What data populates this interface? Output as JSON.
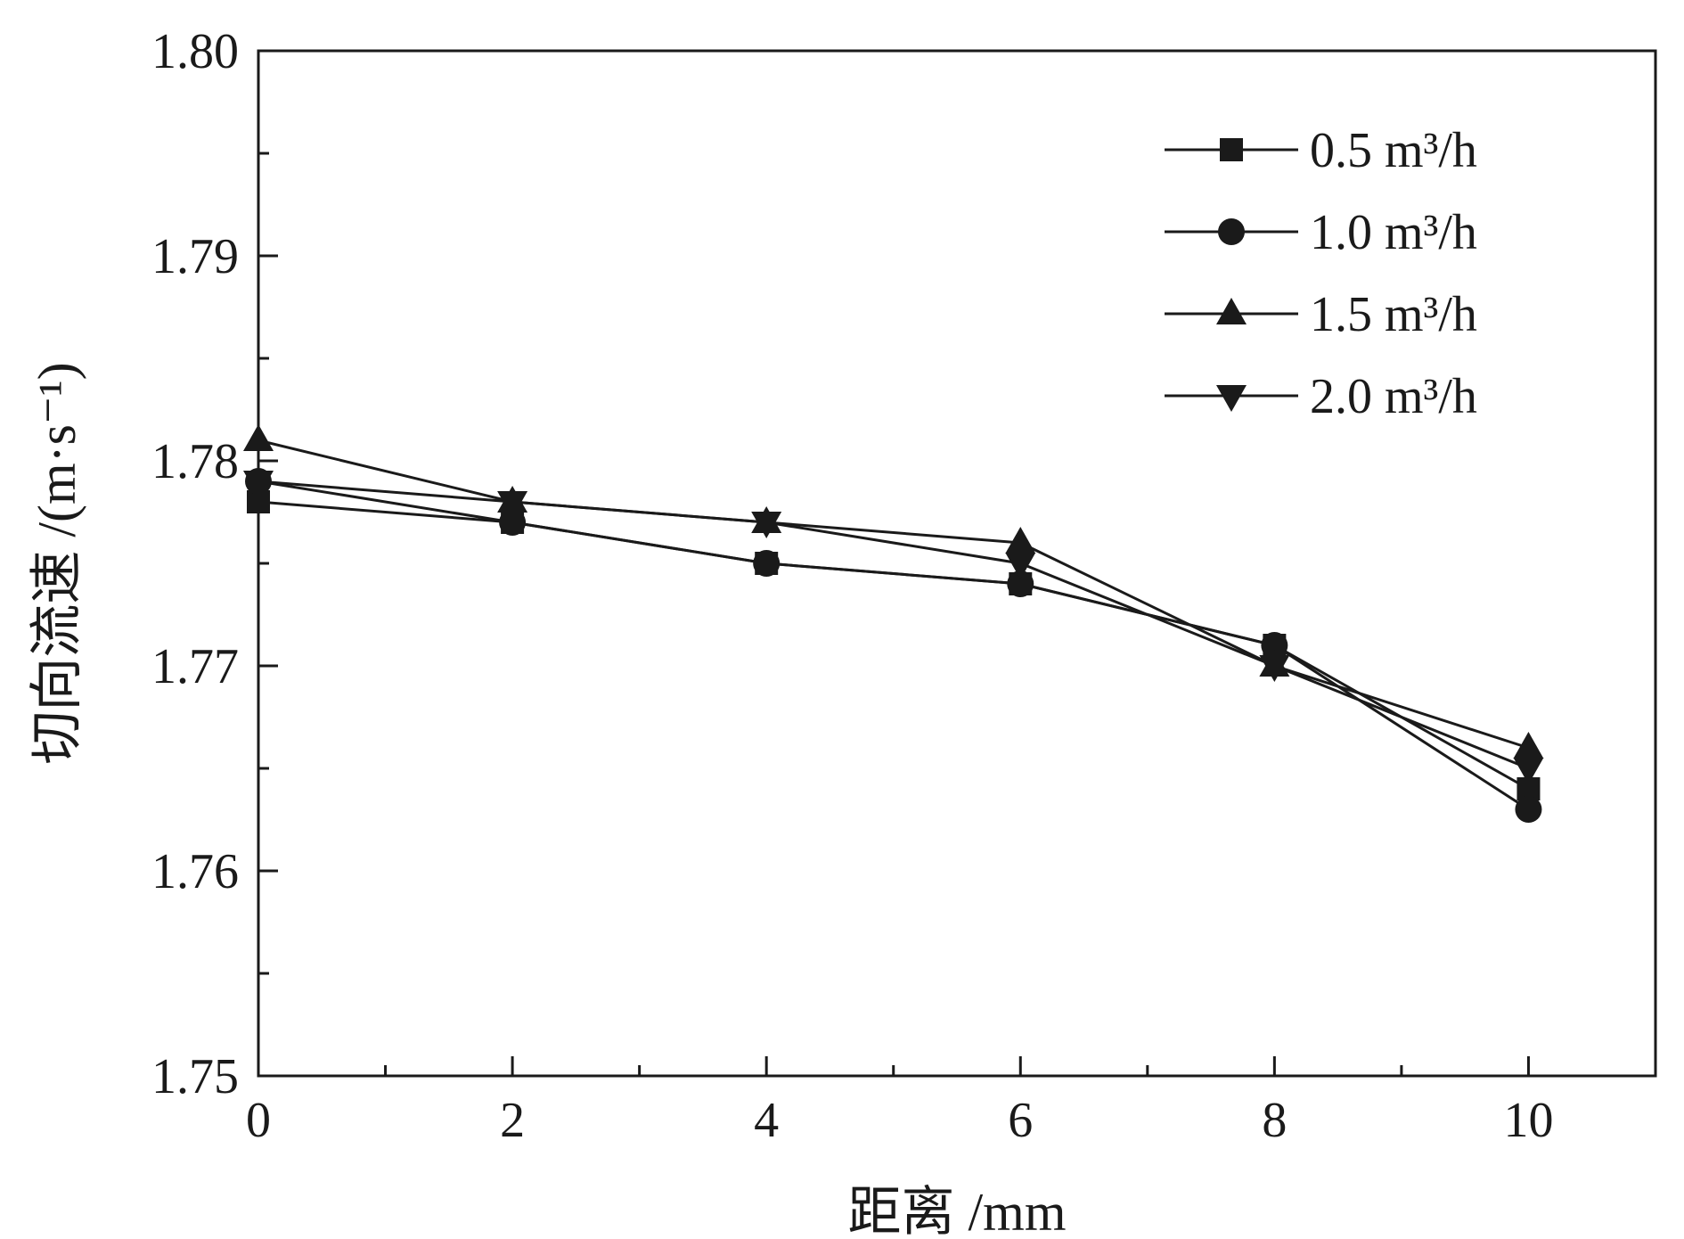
{
  "chart_data": {
    "type": "line",
    "xlabel": "距离 /mm",
    "ylabel": "切向流速 /(m·s⁻¹)",
    "xlim": [
      0,
      11
    ],
    "ylim": [
      1.75,
      1.8
    ],
    "x_ticks": [
      0,
      2,
      4,
      6,
      8,
      10
    ],
    "x_tick_labels": [
      "0",
      "2",
      "4",
      "6",
      "8",
      "10"
    ],
    "y_ticks": [
      1.75,
      1.76,
      1.77,
      1.78,
      1.79,
      1.8
    ],
    "y_tick_labels": [
      "1.75",
      "1.76",
      "1.77",
      "1.78",
      "1.79",
      "1.80"
    ],
    "grid": false,
    "legend_position": "top-right",
    "x": [
      0,
      2,
      4,
      6,
      8,
      10
    ],
    "series": [
      {
        "name": "0.5 m³/h",
        "marker": "square",
        "values": [
          1.778,
          1.777,
          1.775,
          1.774,
          1.771,
          1.764
        ]
      },
      {
        "name": "1.0 m³/h",
        "marker": "circle",
        "values": [
          1.779,
          1.777,
          1.775,
          1.774,
          1.771,
          1.763
        ]
      },
      {
        "name": "1.5 m³/h",
        "marker": "triangle-up",
        "values": [
          1.781,
          1.778,
          1.777,
          1.776,
          1.77,
          1.766
        ]
      },
      {
        "name": "2.0 m³/h",
        "marker": "triangle-down",
        "values": [
          1.779,
          1.778,
          1.777,
          1.775,
          1.77,
          1.765
        ]
      }
    ],
    "colors": {
      "line": "#1a1a1a",
      "marker": "#1a1a1a",
      "axis": "#1a1a1a",
      "background": "#ffffff"
    }
  }
}
